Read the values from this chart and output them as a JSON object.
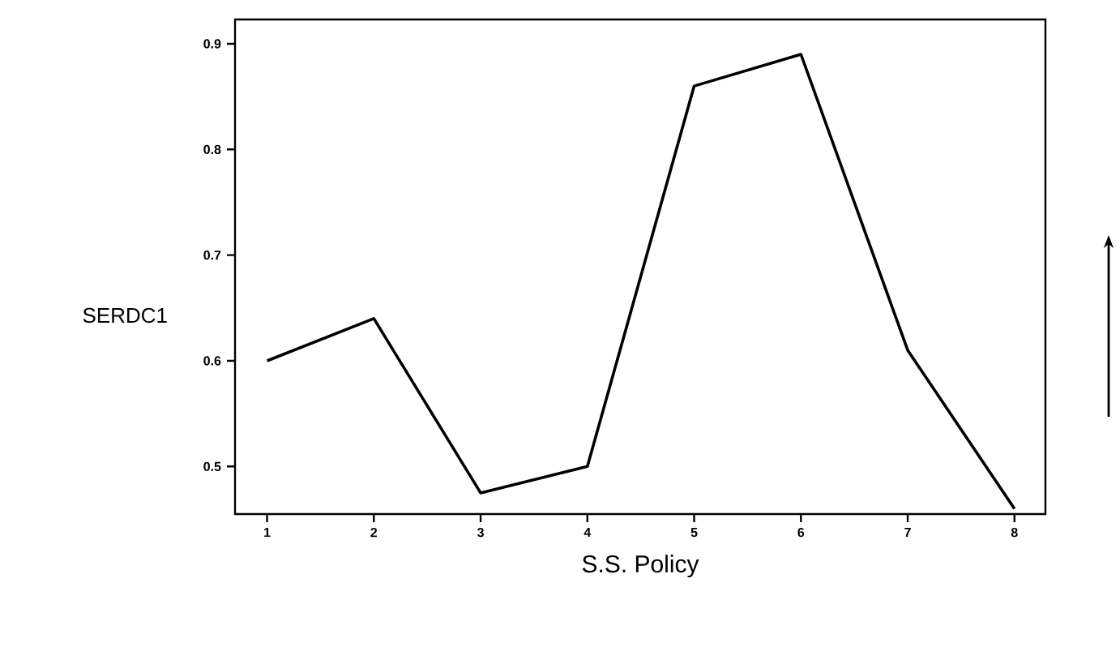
{
  "chart_data": {
    "type": "line",
    "xlabel": "S.S. Policy",
    "ylabel": "SERDC1",
    "x": [
      1,
      2,
      3,
      4,
      5,
      6,
      7,
      8
    ],
    "series": [
      {
        "color": "#000000",
        "values": [
          0.6,
          0.64,
          0.475,
          0.5,
          0.86,
          0.89,
          0.61,
          0.46
        ]
      }
    ],
    "xlim": [
      0.7,
      8.29
    ],
    "ylim": [
      0.455,
      0.923
    ],
    "xticks": [
      1,
      2,
      3,
      4,
      5,
      6,
      7,
      8
    ],
    "yticks": [
      0.5,
      0.6,
      0.7,
      0.8,
      0.9
    ],
    "grid": false,
    "marker": "none",
    "line_style": "solid"
  }
}
